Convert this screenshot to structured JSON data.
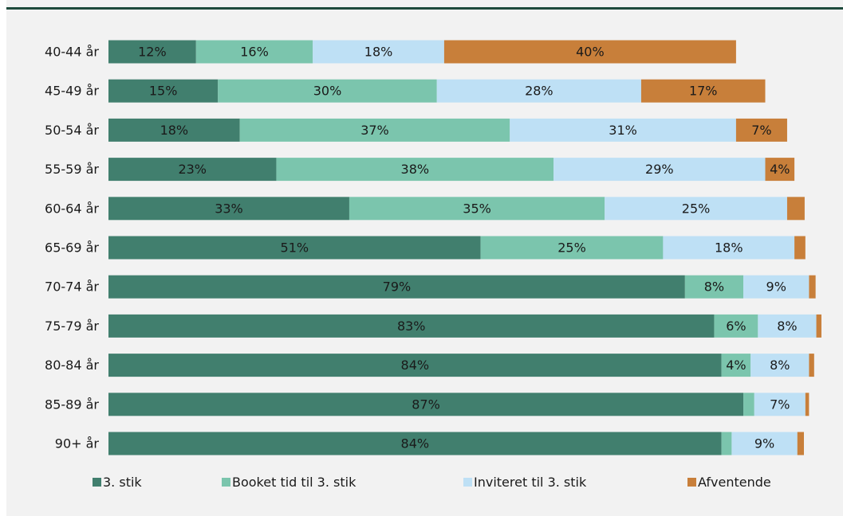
{
  "chart_data": {
    "type": "bar",
    "orientation": "horizontal",
    "stacked": true,
    "percent_stacked": true,
    "categories": [
      "40-44 år",
      "45-49 år",
      "50-54 år",
      "55-59 år",
      "60-64 år",
      "65-69 år",
      "70-74 år",
      "75-79 år",
      "80-84 år",
      "85-89 år",
      "90+ år"
    ],
    "series": [
      {
        "name": "3. stik",
        "color": "#417f6e",
        "values": [
          12,
          15,
          18,
          23,
          33,
          51,
          79,
          83,
          84,
          87,
          84
        ],
        "labels": [
          "12%",
          "15%",
          "18%",
          "23%",
          "33%",
          "51%",
          "79%",
          "83%",
          "84%",
          "87%",
          "84%"
        ]
      },
      {
        "name": "Booket tid til 3. stik",
        "color": "#7bc5ad",
        "values": [
          16,
          30,
          37,
          38,
          35,
          25,
          8,
          6,
          4,
          1.5,
          1.4
        ],
        "labels": [
          "16%",
          "30%",
          "37%",
          "38%",
          "35%",
          "25%",
          "8%",
          "6%",
          "4%",
          "",
          ""
        ]
      },
      {
        "name": "Inviteret til 3. stik",
        "color": "#bee0f5",
        "values": [
          18,
          28,
          31,
          29,
          25,
          18,
          9,
          8,
          8,
          7,
          9
        ],
        "labels": [
          "18%",
          "28%",
          "31%",
          "29%",
          "25%",
          "18%",
          "9%",
          "8%",
          "8%",
          "7%",
          "9%"
        ]
      },
      {
        "name": "Afventende",
        "color": "#c87f3a",
        "values": [
          40,
          17,
          7,
          4,
          2.4,
          1.5,
          0.9,
          0.7,
          0.7,
          0.5,
          0.9
        ],
        "labels": [
          "40%",
          "17%",
          "7%",
          "4%",
          "",
          "",
          "",
          "",
          "",
          "",
          ""
        ]
      }
    ],
    "xlim": [
      0,
      100
    ],
    "grid": false,
    "legend_position": "bottom"
  },
  "colors": {
    "frame_background": "#f2f2f2",
    "top_rule": "#1e4a3c"
  }
}
